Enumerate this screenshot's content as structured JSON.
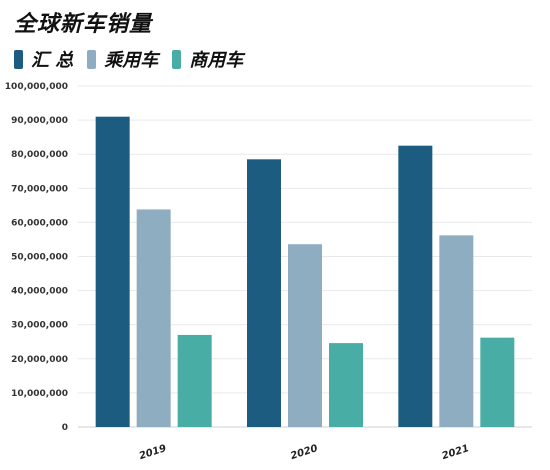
{
  "chart_data": {
    "type": "bar",
    "title": "全球新车销量",
    "categories": [
      "2019",
      "2020",
      "2021"
    ],
    "series": [
      {
        "name": "汇 总",
        "color": "#1b5c80",
        "values": [
          91000000,
          78500000,
          82500000
        ]
      },
      {
        "name": "乘用车",
        "color": "#8eadc1",
        "values": [
          63800000,
          53600000,
          56200000
        ]
      },
      {
        "name": "商用车",
        "color": "#47ada5",
        "values": [
          27000000,
          24600000,
          26200000
        ]
      }
    ],
    "y_ticks": [
      "0",
      "10,000,000",
      "20,000,000",
      "30,000,000",
      "40,000,000",
      "50,000,000",
      "60,000,000",
      "70,000,000",
      "80,000,000",
      "90,000,000",
      "100,000,000"
    ],
    "ylim": [
      0,
      100000000
    ],
    "grid": true,
    "legend_position": "top-left",
    "xlabel": "",
    "ylabel": ""
  }
}
